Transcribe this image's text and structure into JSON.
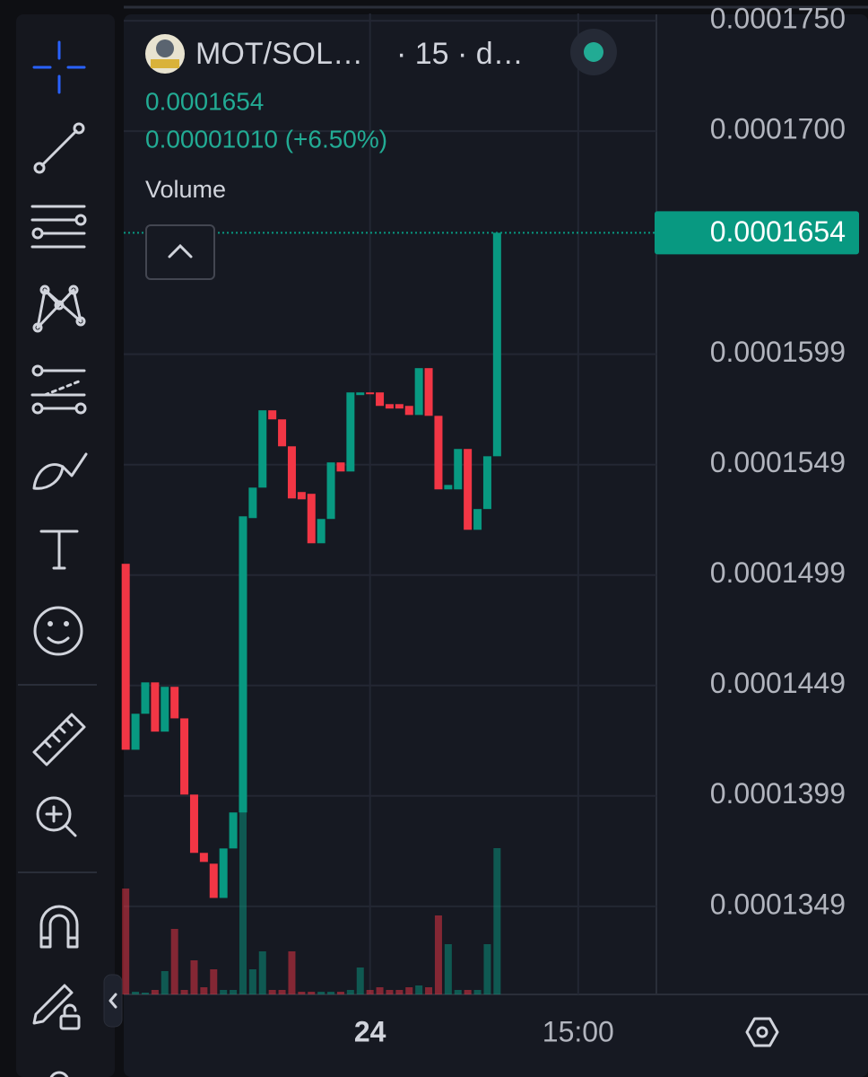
{
  "header": {
    "symbol": "MOT/SOL…",
    "interval": "· 15 · d…",
    "last_price": "0.0001654",
    "change": "0.00001010 (+6.50%)",
    "indicator": "Volume"
  },
  "chart_data": {
    "type": "candlestick",
    "open": [
      0.00015041,
      0.00014199,
      0.00014362,
      0.00014504,
      0.00014281,
      0.00014484,
      0.00014341,
      0.00013996,
      0.00013732,
      0.00013683,
      0.00013528,
      0.00013752,
      0.00013915,
      0.00015248,
      0.00015386,
      0.00015736,
      0.00015695,
      0.00015573,
      0.00015366,
      0.00015358,
      0.00015134,
      0.00015244,
      0.000155,
      0.00015459,
      0.00015805,
      0.00015817,
      0.00015817,
      0.00015764,
      0.00015764,
      0.00015756,
      0.00015715,
      0.00015927,
      0.00015711,
      0.00015378,
      0.00015378,
      0.00015561,
      0.00015195,
      0.00015289,
      0.00015528
    ],
    "close": [
      0.00014199,
      0.00014362,
      0.00014504,
      0.00014281,
      0.00014484,
      0.00014341,
      0.00013996,
      0.00013732,
      0.00013691,
      0.00013528,
      0.00013752,
      0.00013915,
      0.00015256,
      0.00015386,
      0.00015736,
      0.00015695,
      0.00015573,
      0.00015337,
      0.00015333,
      0.00015134,
      0.00015244,
      0.000155,
      0.00015459,
      0.00015817,
      0.00015817,
      0.00015809,
      0.00015756,
      0.00015744,
      0.00015744,
      0.00015715,
      0.00015927,
      0.00015711,
      0.00015378,
      0.00015398,
      0.00015561,
      0.00015195,
      0.00015289,
      0.00015528,
      0.0001654
    ],
    "volume": [
      118,
      3,
      2,
      5,
      26,
      73,
      5,
      38,
      8,
      28,
      5,
      5,
      203,
      28,
      48,
      5,
      5,
      48,
      3,
      3,
      3,
      3,
      3,
      5,
      30,
      5,
      8,
      5,
      5,
      8,
      10,
      8,
      88,
      56,
      5,
      5,
      5,
      56,
      163
    ],
    "volume_lim": [
      0,
      300
    ],
    "up_color": "#089981",
    "down_color": "#f23645",
    "ylim": [
      0.00013091,
      0.00017533
    ],
    "yticks": [
      {
        "value": 0.000175,
        "label": "0.0001750"
      },
      {
        "value": 0.00017,
        "label": "0.0001700"
      },
      0.0001599,
      0.0001549,
      0.0001499,
      0.0001449,
      0.0001399,
      0.0001349
    ],
    "xlim": [
      -0.2,
      54.3
    ],
    "xticks": [
      {
        "value": 25,
        "label": "24"
      },
      {
        "value": 46.3,
        "label": "15:00"
      }
    ],
    "current_price": 0.0001654,
    "grid": true
  }
}
